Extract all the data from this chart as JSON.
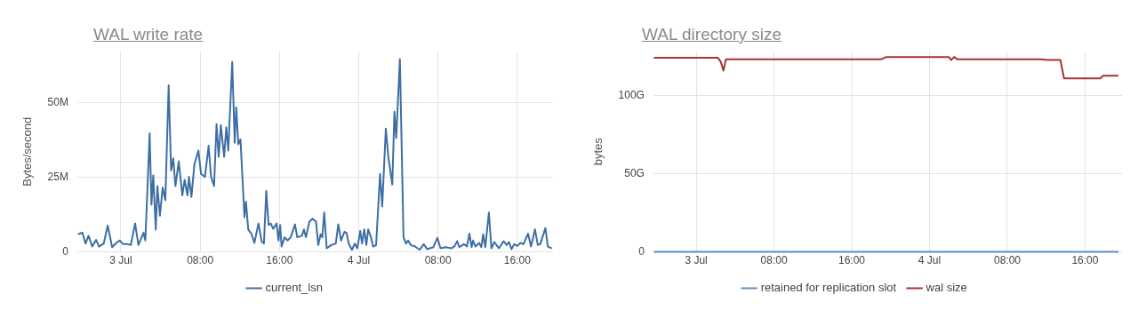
{
  "chart_data": [
    {
      "type": "line",
      "title": "WAL write rate",
      "ylabel": "Bytes/second",
      "legend": "bottom",
      "grid": true,
      "marker": "none",
      "line_style": "solid",
      "xlim": [
        "--07-02T19:36",
        "--07-04T19:36"
      ],
      "xticks": [
        {
          "value": "--07-03T00:00",
          "label": "3 Jul"
        },
        {
          "value": "--07-03T08:00",
          "label": "08:00"
        },
        {
          "value": "--07-03T16:00",
          "label": "16:00"
        },
        {
          "value": "--07-04T00:00",
          "label": "4 Jul"
        },
        {
          "value": "--07-04T08:00",
          "label": "08:00"
        },
        {
          "value": "--07-04T16:00",
          "label": "16:00"
        }
      ],
      "ylim": [
        0,
        67000000
      ],
      "yticks": [
        0,
        {
          "value": 25000000,
          "label": "25M"
        },
        {
          "value": 50000000,
          "label": "50M"
        }
      ],
      "series": [
        {
          "name": "current_lsn",
          "color": "#3d6ea5",
          "x": [
            "--07-02T19:40",
            "--07-02T20:07",
            "--07-02T20:26",
            "--07-02T20:44",
            "--07-02T21:06",
            "--07-02T21:30",
            "--07-02T21:48",
            "--07-02T22:16",
            "--07-02T22:40",
            "--07-02T23:07",
            "--07-02T23:38",
            "--07-02T23:53",
            "--07-03T00:14",
            "--07-03T00:42",
            "--07-03T01:00",
            "--07-03T01:26",
            "--07-03T01:46",
            "--07-03T02:17",
            "--07-03T02:28",
            "--07-03T02:54",
            "--07-03T03:05",
            "--07-03T03:16",
            "--07-03T03:31",
            "--07-03T03:41",
            "--07-03T03:56",
            "--07-03T04:13",
            "--07-03T04:29",
            "--07-03T04:49",
            "--07-03T05:04",
            "--07-03T05:17",
            "--07-03T05:30",
            "--07-03T05:50",
            "--07-03T06:12",
            "--07-03T06:26",
            "--07-03T06:43",
            "--07-03T06:52",
            "--07-03T07:07",
            "--07-03T07:25",
            "--07-03T07:49",
            "--07-03T08:05",
            "--07-03T08:29",
            "--07-03T08:51",
            "--07-03T09:06",
            "--07-03T09:24",
            "--07-03T09:39",
            "--07-03T09:52",
            "--07-03T10:05",
            "--07-03T10:25",
            "--07-03T10:38",
            "--07-03T10:50",
            "--07-03T11:14",
            "--07-03T11:29",
            "--07-03T11:38",
            "--07-03T11:51",
            "--07-03T12:04",
            "--07-03T12:28",
            "--07-03T12:37",
            "--07-03T12:51",
            "--07-03T13:10",
            "--07-03T13:28",
            "--07-03T13:53",
            "--07-03T14:12",
            "--07-03T14:26",
            "--07-03T14:40",
            "--07-03T14:54",
            "--07-03T15:07",
            "--07-03T15:22",
            "--07-03T15:43",
            "--07-03T15:54",
            "--07-03T16:04",
            "--07-03T16:13",
            "--07-03T16:31",
            "--07-03T16:49",
            "--07-03T17:08",
            "--07-03T17:34",
            "--07-03T17:48",
            "--07-03T18:16",
            "--07-03T18:28",
            "--07-03T18:40",
            "--07-03T19:01",
            "--07-03T19:20",
            "--07-03T19:41",
            "--07-03T19:55",
            "--07-03T20:09",
            "--07-03T20:19",
            "--07-03T20:31",
            "--07-03T20:46",
            "--07-03T21:14",
            "--07-03T21:41",
            "--07-03T21:56",
            "--07-03T22:13",
            "--07-03T22:33",
            "--07-03T22:46",
            "--07-03T22:59",
            "--07-03T23:19",
            "--07-03T23:36",
            "--07-03T23:51",
            "--07-04T00:09",
            "--07-04T00:20",
            "--07-04T00:33",
            "--07-04T00:46",
            "--07-04T00:57",
            "--07-04T01:14",
            "--07-04T01:27",
            "--07-04T01:45",
            "--07-04T02:09",
            "--07-04T02:22",
            "--07-04T02:44",
            "--07-04T02:59",
            "--07-04T03:23",
            "--07-04T03:36",
            "--07-04T03:47",
            "--07-04T04:09",
            "--07-04T04:31",
            "--07-04T04:46",
            "--07-04T04:59",
            "--07-04T05:14",
            "--07-04T05:41",
            "--07-04T06:09",
            "--07-04T06:33",
            "--07-04T06:55",
            "--07-04T07:32",
            "--07-04T07:56",
            "--07-04T08:15",
            "--07-04T08:46",
            "--07-04T09:23",
            "--07-04T09:41",
            "--07-04T09:56",
            "--07-04T10:09",
            "--07-04T10:37",
            "--07-04T10:55",
            "--07-04T11:10",
            "--07-04T11:23",
            "--07-04T11:32",
            "--07-04T11:47",
            "--07-04T12:09",
            "--07-04T12:22",
            "--07-04T12:33",
            "--07-04T12:46",
            "--07-04T13:08",
            "--07-04T13:23",
            "--07-04T13:41",
            "--07-04T14:09",
            "--07-04T14:37",
            "--07-04T14:55",
            "--07-04T15:10",
            "--07-04T15:25",
            "--07-04T15:41",
            "--07-04T16:00",
            "--07-04T16:19",
            "--07-04T16:37",
            "--07-04T17:05",
            "--07-04T17:23",
            "--07-04T17:47",
            "--07-04T18:04",
            "--07-04T18:19",
            "--07-04T18:50",
            "--07-04T19:05",
            "--07-04T19:29"
          ],
          "values": [
            5900000,
            6400000,
            2800000,
            5400000,
            1800000,
            4000000,
            1800000,
            2800000,
            8800000,
            1600000,
            3300000,
            3800000,
            2600000,
            2600000,
            2300000,
            9500000,
            2300000,
            6400000,
            3800000,
            39600000,
            15800000,
            25600000,
            7500000,
            22000000,
            12100000,
            21500000,
            17300000,
            55700000,
            27200000,
            31300000,
            22000000,
            30300000,
            18900000,
            24100000,
            18900000,
            25100000,
            18400000,
            29300000,
            33900000,
            26100000,
            25100000,
            35500000,
            25100000,
            22000000,
            42700000,
            31800000,
            42400000,
            31800000,
            41700000,
            33900000,
            63500000,
            36500000,
            48400000,
            36000000,
            37600000,
            11600000,
            16800000,
            7500000,
            6100000,
            3000000,
            9500000,
            3500000,
            2800000,
            20400000,
            9000000,
            9500000,
            7700000,
            9500000,
            3800000,
            9000000,
            1800000,
            4900000,
            3800000,
            4900000,
            9200000,
            4900000,
            5400000,
            7500000,
            4900000,
            10100000,
            11100000,
            10100000,
            2300000,
            5900000,
            4900000,
            13200000,
            1200000,
            2300000,
            2800000,
            9200000,
            3800000,
            6700000,
            6400000,
            2800000,
            700000,
            2800000,
            1200000,
            7000000,
            2800000,
            7500000,
            2300000,
            7500000,
            4900000,
            1800000,
            2300000,
            26100000,
            15200000,
            41200000,
            31800000,
            22500000,
            46900000,
            38100000,
            64500000,
            4900000,
            2800000,
            3800000,
            2300000,
            1800000,
            700000,
            2600000,
            900000,
            1600000,
            4700000,
            1200000,
            1600000,
            1200000,
            2000000,
            3600000,
            1600000,
            2600000,
            1800000,
            6100000,
            1600000,
            3800000,
            1800000,
            3000000,
            1600000,
            5900000,
            1600000,
            13200000,
            1200000,
            3300000,
            1200000,
            3600000,
            2300000,
            3300000,
            900000,
            2600000,
            2000000,
            3000000,
            2600000,
            6100000,
            1800000,
            7500000,
            2300000,
            2600000,
            8000000,
            1800000,
            1200000
          ]
        }
      ]
    },
    {
      "type": "line",
      "title": "WAL directory size",
      "ylabel": "bytes",
      "legend": "bottom",
      "grid": true,
      "marker": "none",
      "line_style": "solid",
      "xlim": [
        "--07-02T19:36",
        "--07-04T19:48"
      ],
      "xticks": [
        {
          "value": "--07-03T00:00",
          "label": "3 Jul"
        },
        {
          "value": "--07-03T08:00",
          "label": "08:00"
        },
        {
          "value": "--07-03T16:00",
          "label": "16:00"
        },
        {
          "value": "--07-04T00:00",
          "label": "4 Jul"
        },
        {
          "value": "--07-04T08:00",
          "label": "08:00"
        },
        {
          "value": "--07-04T16:00",
          "label": "16:00"
        }
      ],
      "ylim": [
        0,
        128
      ],
      "yticks": [
        0,
        {
          "value": 50,
          "label": "50G"
        },
        {
          "value": 100,
          "label": "100G"
        }
      ],
      "series": [
        {
          "name": "retained for replication slot",
          "color": "#5b8ec4",
          "x": [
            "--07-02T19:38",
            "--07-04T19:26"
          ],
          "values": [
            0,
            0
          ]
        },
        {
          "name": "wal size",
          "color": "#a83232",
          "x": [
            "--07-02T19:38",
            "--07-03T02:14",
            "--07-03T02:32",
            "--07-03T02:48",
            "--07-03T03:04",
            "--07-03T11:13",
            "--07-03T19:04",
            "--07-03T19:33",
            "--07-04T01:59",
            "--07-04T02:14",
            "--07-04T02:32",
            "--07-04T02:50",
            "--07-04T11:31",
            "--07-04T12:04",
            "--07-04T13:28",
            "--07-04T13:50",
            "--07-04T17:34",
            "--07-04T17:52",
            "--07-04T19:26"
          ],
          "values": [
            124.0,
            124.0,
            121.4,
            115.8,
            123.1,
            123.1,
            123.1,
            124.5,
            124.5,
            122.6,
            124.5,
            123.1,
            123.1,
            122.6,
            122.6,
            110.9,
            110.9,
            112.6,
            112.6
          ]
        }
      ]
    }
  ]
}
